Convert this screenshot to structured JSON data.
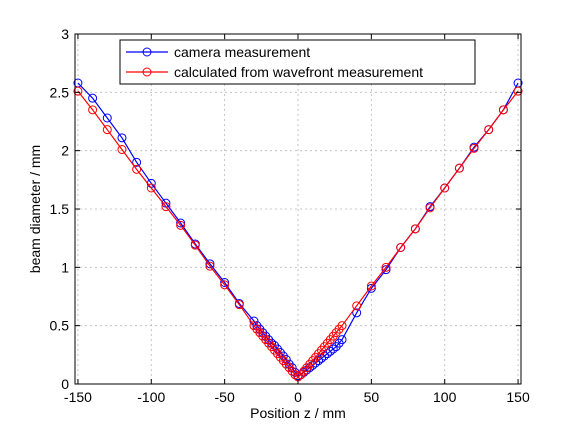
{
  "chart_data": {
    "type": "line",
    "xlabel": "Position z / mm",
    "ylabel": "beam diameter / mm",
    "xlim": [
      -152,
      152
    ],
    "ylim": [
      0,
      3
    ],
    "xticks": [
      -150,
      -100,
      -50,
      0,
      50,
      100,
      150
    ],
    "yticks": [
      0,
      0.5,
      1,
      1.5,
      2,
      2.5,
      3
    ],
    "xtick_labels": [
      "-150",
      "-100",
      "-50",
      "0",
      "50",
      "100",
      "150"
    ],
    "ytick_labels": [
      "0",
      "0.5",
      "1",
      "1.5",
      "2",
      "2.5",
      "3"
    ],
    "grid": true,
    "legend_position": "top",
    "series": [
      {
        "name": "camera measurement",
        "color": "#0000ff",
        "marker": "open-circle",
        "x": [
          -150,
          -140,
          -130,
          -120,
          -110,
          -100,
          -90,
          -80,
          -70,
          -60,
          -50,
          -40,
          -30,
          -28,
          -26,
          -24,
          -22,
          -20,
          -18,
          -16,
          -14,
          -12,
          -10,
          -8,
          -6,
          -4,
          -2,
          0,
          2,
          4,
          6,
          8,
          10,
          12,
          14,
          16,
          18,
          20,
          22,
          24,
          26,
          28,
          30,
          40,
          50,
          60,
          70,
          80,
          90,
          100,
          110,
          120,
          130,
          140,
          150
        ],
        "values": [
          2.58,
          2.45,
          2.28,
          2.11,
          1.9,
          1.72,
          1.55,
          1.38,
          1.2,
          1.03,
          0.87,
          0.69,
          0.54,
          0.5,
          0.47,
          0.44,
          0.41,
          0.38,
          0.35,
          0.33,
          0.3,
          0.27,
          0.24,
          0.21,
          0.17,
          0.14,
          0.1,
          0.07,
          0.08,
          0.1,
          0.12,
          0.14,
          0.16,
          0.18,
          0.2,
          0.22,
          0.24,
          0.26,
          0.28,
          0.3,
          0.32,
          0.35,
          0.38,
          0.61,
          0.82,
          0.98,
          1.17,
          1.33,
          1.52,
          1.68,
          1.85,
          2.03,
          2.18,
          2.35,
          2.58
        ]
      },
      {
        "name": "calculated from wavefront measurement",
        "color": "#ff0000",
        "marker": "open-circle",
        "x": [
          -150,
          -140,
          -130,
          -120,
          -110,
          -100,
          -90,
          -80,
          -70,
          -60,
          -50,
          -40,
          -30,
          -28,
          -26,
          -24,
          -22,
          -20,
          -18,
          -16,
          -14,
          -12,
          -10,
          -8,
          -6,
          -4,
          -2,
          0,
          2,
          4,
          6,
          8,
          10,
          12,
          14,
          16,
          18,
          20,
          22,
          24,
          26,
          28,
          30,
          40,
          50,
          60,
          70,
          80,
          90,
          100,
          110,
          120,
          130,
          140,
          150
        ],
        "values": [
          2.51,
          2.35,
          2.18,
          2.01,
          1.84,
          1.68,
          1.52,
          1.36,
          1.19,
          1.01,
          0.85,
          0.68,
          0.5,
          0.47,
          0.44,
          0.41,
          0.38,
          0.35,
          0.32,
          0.29,
          0.26,
          0.23,
          0.2,
          0.17,
          0.14,
          0.11,
          0.08,
          0.06,
          0.08,
          0.11,
          0.14,
          0.17,
          0.2,
          0.23,
          0.26,
          0.29,
          0.32,
          0.35,
          0.38,
          0.41,
          0.44,
          0.47,
          0.5,
          0.67,
          0.84,
          1.0,
          1.17,
          1.33,
          1.51,
          1.68,
          1.85,
          2.02,
          2.18,
          2.35,
          2.51
        ]
      }
    ]
  }
}
